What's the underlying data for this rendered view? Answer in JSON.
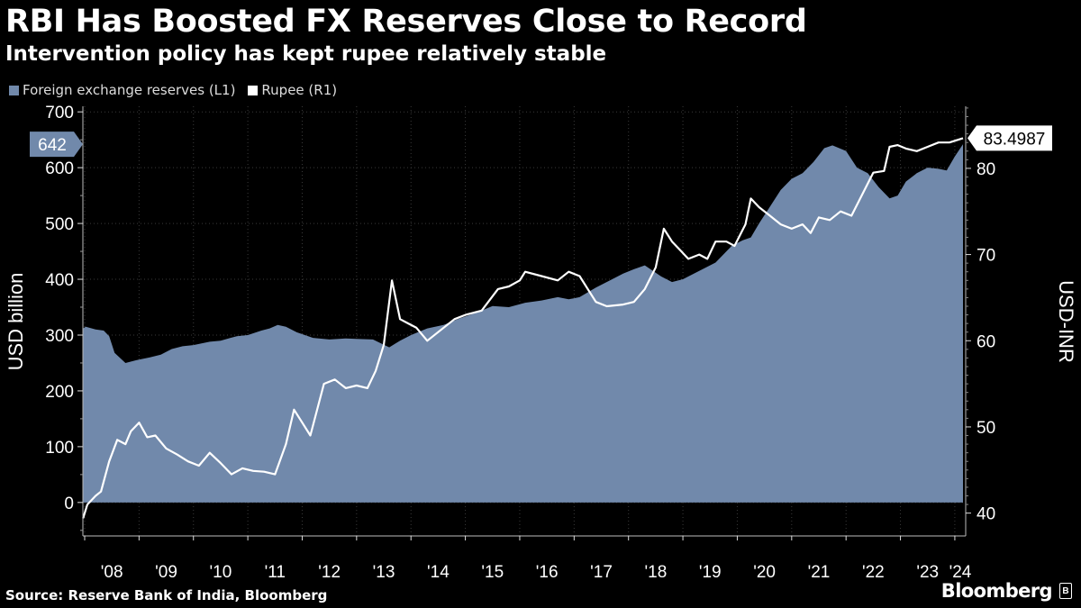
{
  "header": {
    "title": "RBI Has Boosted FX Reserves Close to Record",
    "subtitle": "Intervention policy has kept rupee relatively stable"
  },
  "legend": {
    "items": [
      {
        "label": "Foreign exchange reserves (L1)",
        "color": "#7189ab"
      },
      {
        "label": "Rupee (R1)",
        "color": "#ffffff"
      }
    ]
  },
  "footer": {
    "source": "Source: Reserve Bank of India, Bloomberg",
    "brand": "Bloomberg",
    "brand_icon": "B"
  },
  "chart_data": {
    "type": "area",
    "title": "RBI Has Boosted FX Reserves Close to Record",
    "subtitle": "Intervention policy has kept rupee relatively stable",
    "x_tick_labels": [
      "'08",
      "'09",
      "'10",
      "'11",
      "'12",
      "'13",
      "'14",
      "'15",
      "'16",
      "'17",
      "'18",
      "'19",
      "'20",
      "'21",
      "'22",
      "'23",
      "'24"
    ],
    "xlim": [
      2007.967,
      2024.2
    ],
    "y_left": {
      "label": "USD billion",
      "ticks": [
        0,
        100,
        200,
        300,
        400,
        500,
        600,
        700
      ],
      "ylim": [
        -60,
        710
      ]
    },
    "y_right": {
      "label": "USD-INR",
      "ticks": [
        40,
        50,
        60,
        70,
        80
      ],
      "ylim": [
        37.35,
        87.2
      ]
    },
    "grid": true,
    "series": [
      {
        "name": "Foreign exchange reserves (L1)",
        "type": "area",
        "axis": "left",
        "color": "#7189ab",
        "last_value_label": "642",
        "x": [
          2007.97,
          2008.02,
          2008.2,
          2008.35,
          2008.45,
          2008.55,
          2008.75,
          2008.95,
          2009.2,
          2009.4,
          2009.6,
          2009.8,
          2010.0,
          2010.3,
          2010.5,
          2010.8,
          2011.0,
          2011.25,
          2011.4,
          2011.55,
          2011.7,
          2011.9,
          2012.2,
          2012.5,
          2012.8,
          2013.0,
          2013.3,
          2013.45,
          2013.6,
          2013.8,
          2014.0,
          2014.3,
          2014.6,
          2014.9,
          2015.2,
          2015.5,
          2015.8,
          2016.1,
          2016.4,
          2016.7,
          2016.9,
          2017.1,
          2017.4,
          2017.7,
          2017.9,
          2018.1,
          2018.3,
          2018.6,
          2018.8,
          2019.0,
          2019.3,
          2019.6,
          2019.9,
          2020.1,
          2020.25,
          2020.4,
          2020.6,
          2020.8,
          2021.0,
          2021.2,
          2021.4,
          2021.6,
          2021.75,
          2022.0,
          2022.2,
          2022.4,
          2022.6,
          2022.8,
          2022.95,
          2023.1,
          2023.3,
          2023.5,
          2023.7,
          2023.85,
          2024.0,
          2024.15
        ],
        "values": [
          312,
          315,
          310,
          308,
          298,
          268,
          250,
          255,
          260,
          265,
          275,
          280,
          282,
          288,
          290,
          298,
          300,
          308,
          312,
          318,
          315,
          305,
          295,
          292,
          294,
          293,
          292,
          285,
          278,
          290,
          300,
          312,
          318,
          330,
          340,
          352,
          350,
          358,
          362,
          368,
          364,
          368,
          385,
          400,
          410,
          418,
          425,
          405,
          395,
          400,
          415,
          430,
          460,
          470,
          475,
          500,
          530,
          560,
          580,
          590,
          610,
          635,
          640,
          630,
          600,
          590,
          565,
          545,
          550,
          575,
          590,
          600,
          598,
          595,
          620,
          642
        ]
      },
      {
        "name": "Rupee (R1)",
        "type": "line",
        "axis": "right",
        "color": "#ffffff",
        "last_value_label": "83.4987",
        "x": [
          2007.97,
          2008.05,
          2008.2,
          2008.3,
          2008.45,
          2008.6,
          2008.75,
          2008.85,
          2009.0,
          2009.15,
          2009.3,
          2009.5,
          2009.7,
          2009.9,
          2010.1,
          2010.3,
          2010.5,
          2010.7,
          2010.9,
          2011.1,
          2011.3,
          2011.5,
          2011.7,
          2011.85,
          2012.0,
          2012.15,
          2012.4,
          2012.6,
          2012.8,
          2013.0,
          2013.2,
          2013.35,
          2013.5,
          2013.65,
          2013.8,
          2013.95,
          2014.1,
          2014.3,
          2014.5,
          2014.8,
          2015.0,
          2015.3,
          2015.6,
          2015.8,
          2016.0,
          2016.1,
          2016.4,
          2016.7,
          2016.9,
          2017.1,
          2017.4,
          2017.6,
          2017.9,
          2018.1,
          2018.3,
          2018.5,
          2018.65,
          2018.8,
          2018.95,
          2019.1,
          2019.3,
          2019.45,
          2019.6,
          2019.8,
          2019.95,
          2020.15,
          2020.25,
          2020.4,
          2020.6,
          2020.8,
          2021.0,
          2021.2,
          2021.35,
          2021.5,
          2021.7,
          2021.9,
          2022.1,
          2022.3,
          2022.5,
          2022.7,
          2022.8,
          2022.95,
          2023.1,
          2023.3,
          2023.5,
          2023.7,
          2023.9,
          2024.0,
          2024.15
        ],
        "values": [
          39.4,
          41.0,
          42.0,
          42.5,
          46.0,
          48.5,
          48.0,
          49.5,
          50.5,
          48.8,
          49.0,
          47.5,
          46.8,
          46.0,
          45.5,
          47.0,
          45.8,
          44.5,
          45.2,
          44.9,
          44.8,
          44.5,
          48.0,
          52.0,
          50.5,
          49.0,
          55.0,
          55.5,
          54.5,
          54.8,
          54.5,
          56.5,
          59.5,
          67.0,
          62.5,
          62.0,
          61.5,
          60.0,
          61.0,
          62.5,
          63.0,
          63.5,
          66.0,
          66.3,
          67.0,
          68.0,
          67.5,
          67.0,
          68.0,
          67.5,
          64.5,
          64.0,
          64.2,
          64.5,
          66.0,
          68.5,
          73.0,
          71.5,
          70.5,
          69.5,
          70.0,
          69.5,
          71.5,
          71.5,
          71.0,
          73.5,
          76.5,
          75.5,
          74.5,
          73.5,
          73.0,
          73.5,
          72.5,
          74.3,
          74.0,
          75.0,
          74.5,
          77.0,
          79.5,
          79.7,
          82.5,
          82.7,
          82.3,
          82.0,
          82.5,
          83.0,
          83.0,
          83.2,
          83.4987
        ]
      }
    ]
  }
}
